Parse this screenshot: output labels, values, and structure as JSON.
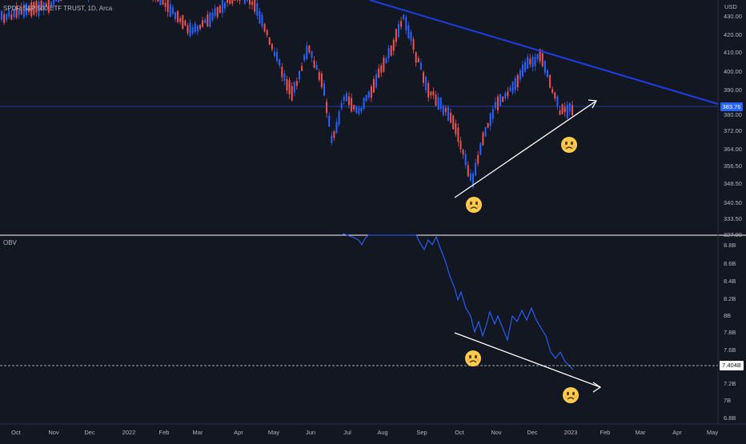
{
  "title": "SPDR S&P 500 ETF TRUST, 1D, Arca",
  "currency": "USD",
  "indicator_label": "OBV",
  "current_price_label": "383.76",
  "current_obv_label": "7.404B",
  "price_axis_ticks": [
    "430.00",
    "420.00",
    "410.00",
    "400.00",
    "390.00",
    "380.00",
    "372.00",
    "364.00",
    "356.50",
    "348.50",
    "340.50",
    "333.50",
    "327.00"
  ],
  "obv_axis_ticks": [
    "8.8B",
    "8.6B",
    "8.4B",
    "8.2B",
    "8B",
    "7.8B",
    "7.6B",
    "7.2B",
    "7B",
    "6.8B"
  ],
  "time_axis_ticks": [
    "Oct",
    "Nov",
    "Dec",
    "2022",
    "Feb",
    "Mar",
    "Apr",
    "May",
    "Jun",
    "Jul",
    "Aug",
    "Sep",
    "Oct",
    "Nov",
    "Dec",
    "2023",
    "Feb",
    "Mar",
    "Apr",
    "May"
  ],
  "colors": {
    "background": "#131722",
    "bullish": "#2962ff",
    "bearish": "#ef5350",
    "trendline": "#1e3ee6",
    "obv_line": "#2962ff",
    "annotation": "#ffffff",
    "price_line": "#2962ff"
  },
  "annotations": {
    "emoji_names": [
      "worried-face-icon",
      "frowning-face-icon",
      "worried-face-icon",
      "frowning-face-icon"
    ]
  }
}
